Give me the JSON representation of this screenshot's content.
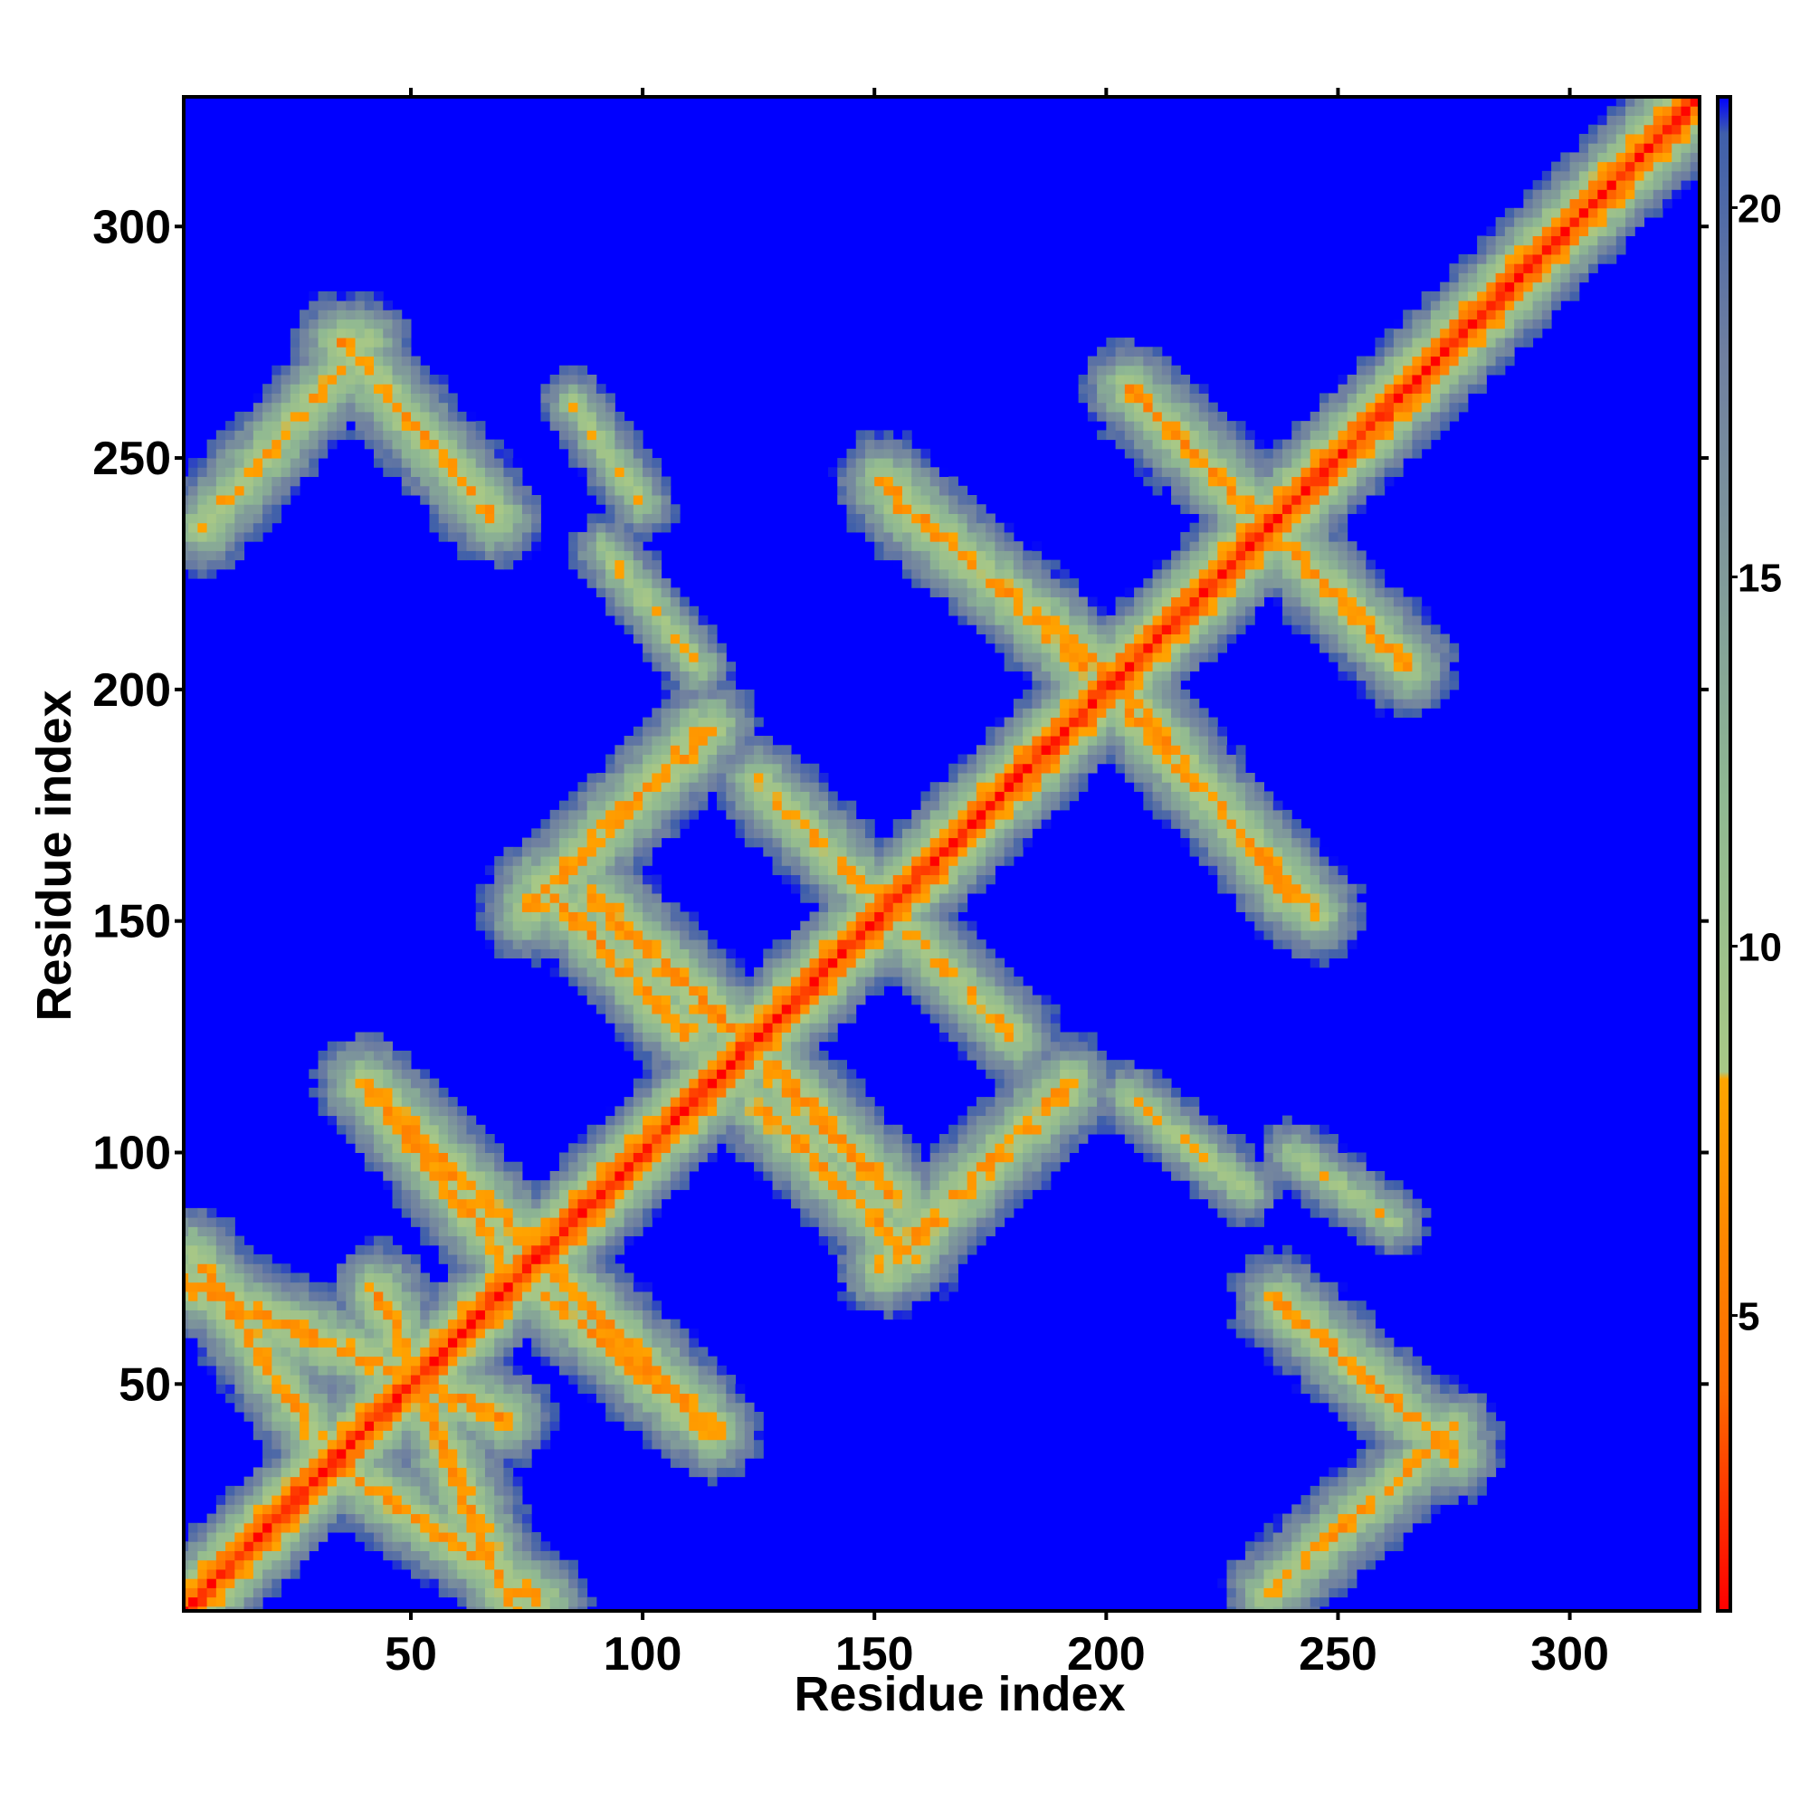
{
  "chart_data": {
    "type": "heatmap",
    "title": "",
    "xlabel": "Residue index",
    "ylabel": "Residue index",
    "xlim": [
      1,
      328
    ],
    "ylim": [
      1,
      328
    ],
    "x_ticks": [
      50,
      100,
      150,
      200,
      250,
      300
    ],
    "y_ticks": [
      50,
      100,
      150,
      200,
      250,
      300
    ],
    "x_tick_labels": [
      "50",
      "100",
      "150",
      "200",
      "250",
      "300"
    ],
    "y_tick_labels": [
      "50",
      "100",
      "150",
      "200",
      "250",
      "300"
    ],
    "colorbar": {
      "range": [
        1,
        21.5
      ],
      "ticks": [
        5,
        10,
        15,
        20
      ],
      "tick_labels": [
        "5",
        "10",
        "15",
        "20"
      ],
      "stops": [
        {
          "value": 1,
          "color": "#ff0000"
        },
        {
          "value": 4,
          "color": "#ff6a00"
        },
        {
          "value": 8.2,
          "color": "#ffa500"
        },
        {
          "value": 8.3,
          "color": "#a8c886"
        },
        {
          "value": 12,
          "color": "#8fb892"
        },
        {
          "value": 15,
          "color": "#809a9a"
        },
        {
          "value": 18,
          "color": "#6f7fa0"
        },
        {
          "value": 21,
          "color": "#3f5faa"
        },
        {
          "value": 21.5,
          "color": "#0000ff"
        }
      ],
      "cap_color": "#0000ff"
    },
    "description_of_values": "Pairwise residue distance map (cutoff ~21); diagonal minimum, contact bands perpendicular and parallel to the diagonal",
    "contact_bands": [
      {
        "from": [
          1,
          1
        ],
        "to": [
          328,
          328
        ],
        "min_value": 1.5,
        "width": 4,
        "kind": "diagonal"
      },
      {
        "from": [
          1,
          72
        ],
        "to": [
          70,
          43
        ],
        "min_value": 6,
        "width": 5
      },
      {
        "from": [
          72,
          1
        ],
        "to": [
          43,
          70
        ],
        "min_value": 6,
        "width": 5
      },
      {
        "from": [
          38,
          30
        ],
        "to": [
          78,
          3
        ],
        "min_value": 6.5,
        "width": 5
      },
      {
        "from": [
          30,
          38
        ],
        "to": [
          3,
          78
        ],
        "min_value": 6.5,
        "width": 5
      },
      {
        "from": [
          40,
          115
        ],
        "to": [
          75,
          80
        ],
        "min_value": 6,
        "width": 5
      },
      {
        "from": [
          115,
          40
        ],
        "to": [
          80,
          75
        ],
        "min_value": 6,
        "width": 5
      },
      {
        "from": [
          78,
          70
        ],
        "to": [
          112,
          42
        ],
        "min_value": 6.5,
        "width": 5
      },
      {
        "from": [
          70,
          78
        ],
        "to": [
          42,
          112
        ],
        "min_value": 6.5,
        "width": 5
      },
      {
        "from": [
          90,
          155
        ],
        "to": [
          138,
          108
        ],
        "min_value": 6,
        "width": 5
      },
      {
        "from": [
          155,
          90
        ],
        "to": [
          108,
          138
        ],
        "min_value": 6,
        "width": 5
      },
      {
        "from": [
          115,
          192
        ],
        "to": [
          75,
          152
        ],
        "min_value": 6.5,
        "width": 5
      },
      {
        "from": [
          192,
          115
        ],
        "to": [
          152,
          75
        ],
        "min_value": 6.5,
        "width": 5
      },
      {
        "from": [
          125,
          110
        ],
        "to": [
          158,
          78
        ],
        "min_value": 6.5,
        "width": 5
      },
      {
        "from": [
          110,
          125
        ],
        "to": [
          78,
          158
        ],
        "min_value": 6.5,
        "width": 5
      },
      {
        "from": [
          125,
          180
        ],
        "to": [
          175,
          130
        ],
        "min_value": 7,
        "width": 5
      },
      {
        "from": [
          180,
          125
        ],
        "to": [
          130,
          175
        ],
        "min_value": 7,
        "width": 5
      },
      {
        "from": [
          158,
          80
        ],
        "to": [
          192,
          113
        ],
        "min_value": 7,
        "width": 5
      },
      {
        "from": [
          80,
          158
        ],
        "to": [
          113,
          192
        ],
        "min_value": 7,
        "width": 5
      },
      {
        "from": [
          155,
          240
        ],
        "to": [
          205,
          200
        ],
        "min_value": 6.5,
        "width": 5
      },
      {
        "from": [
          240,
          155
        ],
        "to": [
          200,
          205
        ],
        "min_value": 6.5,
        "width": 5
      },
      {
        "from": [
          205,
          195
        ],
        "to": [
          245,
          152
        ],
        "min_value": 6.5,
        "width": 5
      },
      {
        "from": [
          195,
          205
        ],
        "to": [
          152,
          245
        ],
        "min_value": 6.5,
        "width": 5
      },
      {
        "from": [
          205,
          265
        ],
        "to": [
          245,
          225
        ],
        "min_value": 6.5,
        "width": 5
      },
      {
        "from": [
          265,
          205
        ],
        "to": [
          225,
          245
        ],
        "min_value": 6.5,
        "width": 5
      },
      {
        "from": [
          237,
          68
        ],
        "to": [
          275,
          35
        ],
        "min_value": 6.5,
        "width": 5
      },
      {
        "from": [
          68,
          237
        ],
        "to": [
          35,
          275
        ],
        "min_value": 6.5,
        "width": 5
      },
      {
        "from": [
          235,
          5
        ],
        "to": [
          275,
          40
        ],
        "min_value": 7,
        "width": 5
      },
      {
        "from": [
          5,
          235
        ],
        "to": [
          40,
          275
        ],
        "min_value": 7,
        "width": 5
      },
      {
        "from": [
          205,
          112
        ],
        "to": [
          230,
          92
        ],
        "min_value": 8,
        "width": 4
      },
      {
        "from": [
          112,
          205
        ],
        "to": [
          92,
          230
        ],
        "min_value": 8,
        "width": 4
      },
      {
        "from": [
          240,
          100
        ],
        "to": [
          262,
          85
        ],
        "min_value": 8.5,
        "width": 4
      },
      {
        "from": [
          100,
          240
        ],
        "to": [
          85,
          262
        ],
        "min_value": 8.5,
        "width": 4
      }
    ]
  }
}
